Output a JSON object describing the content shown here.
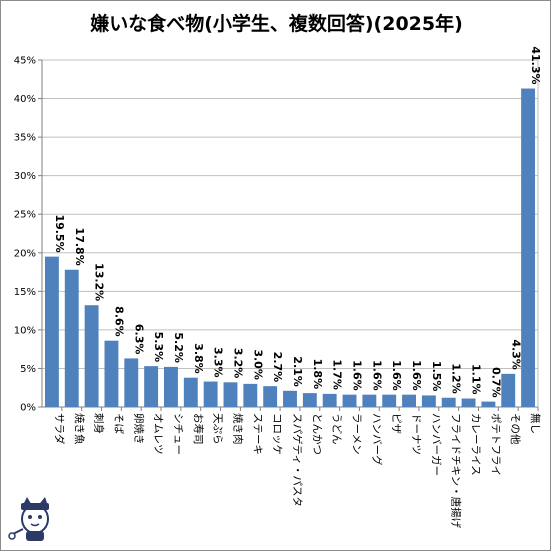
{
  "chart_data": {
    "type": "bar",
    "title": "嫌いな食べ物(小学生、複数回答)(2025年)",
    "xlabel": "",
    "ylabel": "",
    "ylim": [
      0,
      45
    ],
    "yticks": [
      "0%",
      "5%",
      "10%",
      "15%",
      "20%",
      "25%",
      "30%",
      "35%",
      "40%",
      "45%"
    ],
    "grid": true,
    "bar_color": "#4f81bd",
    "categories": [
      "サラダ",
      "焼き魚",
      "刺身",
      "そば",
      "卵焼き",
      "オムレツ",
      "シチュー",
      "お寿司",
      "天ぷら",
      "焼き肉",
      "ステーキ",
      "コロッケ",
      "スパゲティ・パスタ",
      "とんかつ",
      "うどん",
      "ラーメン",
      "ハンバーグ",
      "ピザ",
      "ドーナツ",
      "ハンバーガー",
      "フライドチキン・唐揚げ",
      "カレーライス",
      "ポテトフライ",
      "その他",
      "無し"
    ],
    "values": [
      19.5,
      17.8,
      13.2,
      8.6,
      6.3,
      5.3,
      5.2,
      3.8,
      3.3,
      3.2,
      3.0,
      2.7,
      2.1,
      1.8,
      1.7,
      1.6,
      1.6,
      1.6,
      1.6,
      1.5,
      1.2,
      1.1,
      0.7,
      4.3,
      41.3
    ],
    "data_labels": [
      "19.5%",
      "17.8%",
      "13.2%",
      "8.6%",
      "6.3%",
      "5.3%",
      "5.2%",
      "3.8%",
      "3.3%",
      "3.2%",
      "3.0%",
      "2.7%",
      "2.1%",
      "1.8%",
      "1.7%",
      "1.6%",
      "1.6%",
      "1.6%",
      "1.6%",
      "1.5%",
      "1.2%",
      "1.1%",
      "0.7%",
      "4.3%",
      "41.3%"
    ]
  }
}
